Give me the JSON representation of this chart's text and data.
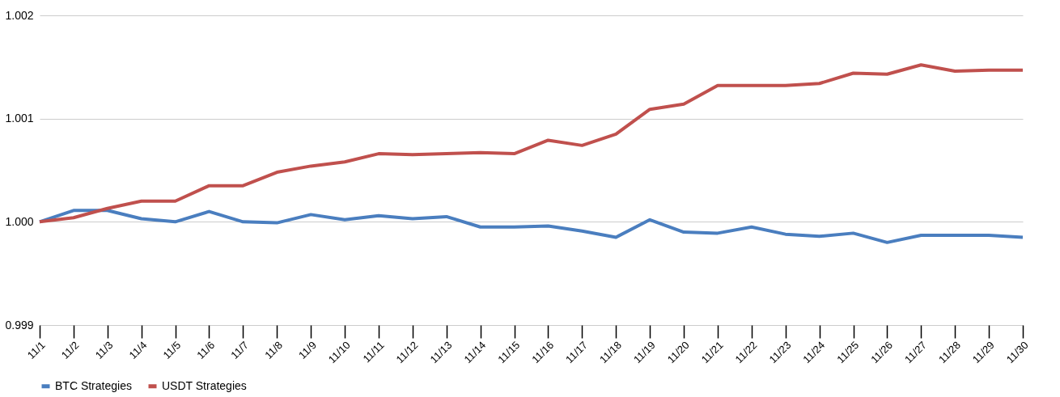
{
  "chart_data": {
    "type": "line",
    "categories": [
      "11/1",
      "11/2",
      "11/3",
      "11/4",
      "11/5",
      "11/6",
      "11/7",
      "11/8",
      "11/9",
      "11/10",
      "11/11",
      "11/12",
      "11/13",
      "11/14",
      "11/15",
      "11/16",
      "11/17",
      "11/18",
      "11/19",
      "11/20",
      "11/21",
      "11/22",
      "11/23",
      "11/24",
      "11/25",
      "11/26",
      "11/27",
      "11/28",
      "11/29",
      "11/30"
    ],
    "series": [
      {
        "name": "BTC Strategies",
        "color": "#4a7ebf",
        "values": [
          1.0,
          1.00011,
          1.00011,
          1.00003,
          1.0,
          1.0001,
          1.0,
          0.99999,
          1.00007,
          1.00002,
          1.00006,
          1.00003,
          1.00005,
          0.99995,
          0.99995,
          0.99996,
          0.99991,
          0.99985,
          1.00002,
          0.9999,
          0.99989,
          0.99995,
          0.99988,
          0.99986,
          0.99989,
          0.9998,
          0.99987,
          0.99987,
          0.99987,
          0.99985
        ]
      },
      {
        "name": "USDT Strategies",
        "color": "#c0504d",
        "values": [
          1.0,
          1.00004,
          1.00013,
          1.0002,
          1.0002,
          1.00035,
          1.00035,
          1.00048,
          1.00054,
          1.00058,
          1.00066,
          1.00065,
          1.00066,
          1.00067,
          1.00066,
          1.00079,
          1.00074,
          1.00085,
          1.00109,
          1.00114,
          1.00132,
          1.00132,
          1.00132,
          1.00134,
          1.00144,
          1.00143,
          1.00152,
          1.00146,
          1.00147,
          1.00147
        ]
      }
    ],
    "ylim": [
      0.999,
      1.002
    ],
    "yticks": [
      {
        "value": 0.999,
        "label": "0.999"
      },
      {
        "value": 1.0,
        "label": "1.000"
      },
      {
        "value": 1.001,
        "label": "1.001"
      },
      {
        "value": 1.002,
        "label": "1.002"
      }
    ],
    "grid": "y",
    "legend": "bottom",
    "marker": "none",
    "line_style": "solid"
  }
}
